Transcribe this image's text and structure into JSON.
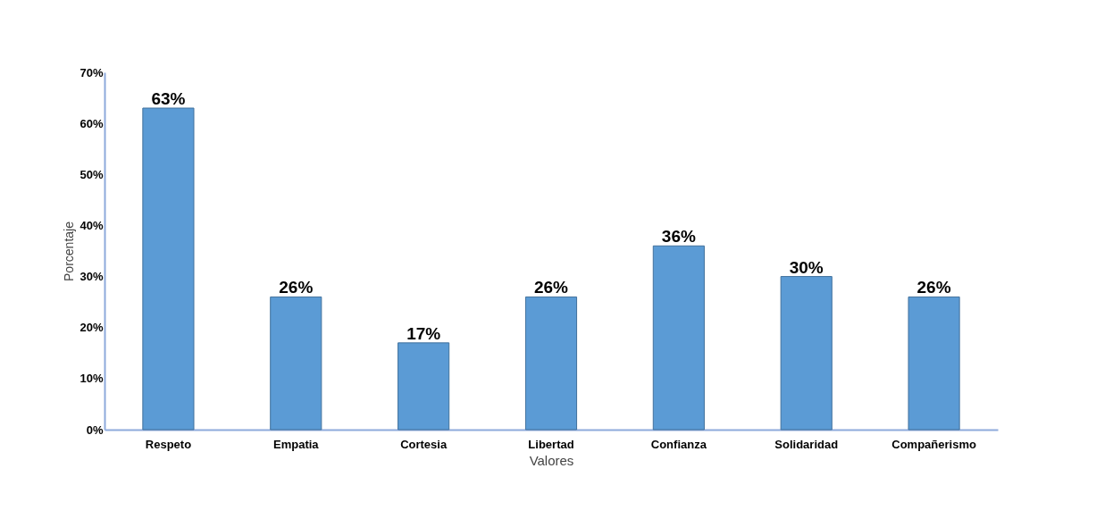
{
  "chart_data": {
    "type": "bar",
    "xlabel": "Valores",
    "ylabel": "Porcentaje",
    "categories": [
      "Respeto",
      "Empatia",
      "Cortesia",
      "Libertad",
      "Confianza",
      "Solidaridad",
      "Compañerismo"
    ],
    "values": [
      63,
      26,
      17,
      26,
      36,
      30,
      26
    ],
    "value_labels": [
      "63%",
      "26%",
      "17%",
      "26%",
      "36%",
      "30%",
      "26%"
    ],
    "color": "#5b9bd5",
    "ylim": [
      0,
      70
    ],
    "yticks": [
      {
        "value": 0,
        "label": "0%"
      },
      {
        "value": 10,
        "label": "10%"
      },
      {
        "value": 20,
        "label": "20%"
      },
      {
        "value": 30,
        "label": "30%"
      },
      {
        "value": 40,
        "label": "40%"
      },
      {
        "value": 50,
        "label": "50%"
      },
      {
        "value": 60,
        "label": "60%"
      },
      {
        "value": 70,
        "label": "70%"
      }
    ],
    "grid": false
  }
}
